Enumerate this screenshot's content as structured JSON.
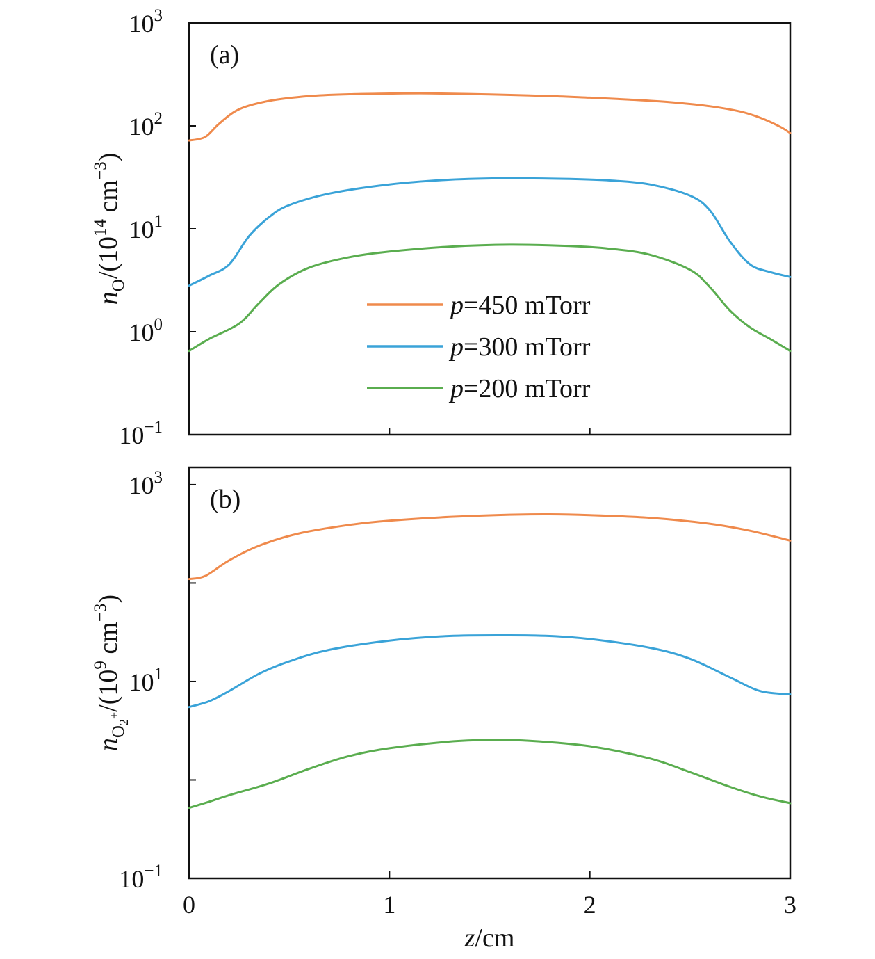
{
  "chart_data": [
    {
      "type": "line",
      "panel_label": "(a)",
      "yscale": "log",
      "ylim": [
        0.1,
        1000
      ],
      "xlim": [
        0,
        3
      ],
      "y_tick_values": [
        0.1,
        1,
        10,
        100,
        1000
      ],
      "y_tick_labels": [
        {
          "base": "10",
          "exp": "−1"
        },
        {
          "base": "10",
          "exp": "0"
        },
        {
          "base": "10",
          "exp": "1"
        },
        {
          "base": "10",
          "exp": "2"
        },
        {
          "base": "10",
          "exp": "3"
        }
      ],
      "x_tick_values": [
        0,
        1,
        2,
        3
      ],
      "x_tick_labels_shown": false,
      "ylabel": {
        "var": "n",
        "sub": "O",
        "mid": "/(10",
        "sup": "14",
        "unit": " cm",
        "unit_sup": "−3",
        "close": ")"
      },
      "legend": {
        "position": "center-right",
        "entries": [
          {
            "var": "p",
            "text": "=450 mTorr",
            "color": "#ef8a4c"
          },
          {
            "var": "p",
            "text": "=300 mTorr",
            "color": "#3aa3d8"
          },
          {
            "var": "p",
            "text": "=200 mTorr",
            "color": "#5aad4f"
          }
        ]
      },
      "series": [
        {
          "color": "#ef8a4c",
          "x": [
            0,
            0.08,
            0.15,
            0.25,
            0.4,
            0.6,
            0.8,
            1.0,
            1.2,
            1.5,
            1.8,
            2.0,
            2.2,
            2.4,
            2.6,
            2.75,
            2.85,
            2.95,
            3.0
          ],
          "y": [
            72,
            78,
            105,
            145,
            175,
            195,
            203,
            206,
            207,
            202,
            195,
            188,
            180,
            170,
            155,
            138,
            120,
            98,
            85
          ]
        },
        {
          "color": "#3aa3d8",
          "x": [
            0,
            0.1,
            0.2,
            0.3,
            0.4,
            0.5,
            0.7,
            1.0,
            1.3,
            1.6,
            1.9,
            2.1,
            2.3,
            2.5,
            2.6,
            2.7,
            2.8,
            2.9,
            3.0
          ],
          "y": [
            2.8,
            3.5,
            4.5,
            8.5,
            13,
            17,
            22,
            27,
            30,
            31,
            30.5,
            29.5,
            27,
            21,
            15,
            7.5,
            4.5,
            3.8,
            3.4
          ]
        },
        {
          "color": "#5aad4f",
          "x": [
            0,
            0.1,
            0.25,
            0.35,
            0.45,
            0.6,
            0.8,
            1.0,
            1.3,
            1.6,
            1.9,
            2.1,
            2.3,
            2.5,
            2.6,
            2.7,
            2.8,
            2.9,
            3.0
          ],
          "y": [
            0.65,
            0.85,
            1.2,
            1.9,
            2.9,
            4.2,
            5.3,
            6.0,
            6.7,
            7.0,
            6.8,
            6.4,
            5.6,
            4.0,
            2.7,
            1.6,
            1.1,
            0.85,
            0.65
          ]
        }
      ]
    },
    {
      "type": "line",
      "panel_label": "(b)",
      "yscale": "log",
      "ylim": [
        0.1,
        1500
      ],
      "xlim": [
        0,
        3
      ],
      "y_tick_values": [
        0.1,
        1,
        10,
        100,
        1000
      ],
      "y_tick_labels": [
        {
          "base": "10",
          "exp": "−1"
        },
        {
          "base": "",
          "exp": ""
        },
        {
          "base": "10",
          "exp": "1"
        },
        {
          "base": "",
          "exp": ""
        },
        {
          "base": "10",
          "exp": "3"
        }
      ],
      "x_tick_values": [
        0,
        1,
        2,
        3
      ],
      "x_tick_labels": [
        "0",
        "1",
        "2",
        "3"
      ],
      "xlabel": {
        "var": "z",
        "text": "/cm"
      },
      "ylabel": {
        "var": "n",
        "sub": "O",
        "sub2": "2",
        "sub_sup": "+",
        "mid": "/(10",
        "sup": "9",
        "unit": " cm",
        "unit_sup": "−3",
        "close": ")"
      },
      "series": [
        {
          "color": "#ef8a4c",
          "x": [
            0,
            0.08,
            0.2,
            0.35,
            0.55,
            0.8,
            1.0,
            1.3,
            1.6,
            1.8,
            2.0,
            2.3,
            2.6,
            2.8,
            3.0
          ],
          "y": [
            110,
            118,
            170,
            240,
            320,
            390,
            430,
            470,
            495,
            500,
            490,
            460,
            400,
            340,
            270
          ]
        },
        {
          "color": "#3aa3d8",
          "x": [
            0,
            0.1,
            0.2,
            0.35,
            0.5,
            0.7,
            1.0,
            1.3,
            1.6,
            1.8,
            2.0,
            2.3,
            2.5,
            2.7,
            2.85,
            3.0
          ],
          "y": [
            5.5,
            6.3,
            8,
            12,
            16,
            21,
            26,
            29,
            29.5,
            29,
            27,
            22,
            17,
            11,
            8,
            7.4
          ]
        },
        {
          "color": "#5aad4f",
          "x": [
            0,
            0.1,
            0.2,
            0.4,
            0.6,
            0.8,
            1.0,
            1.3,
            1.5,
            1.7,
            2.0,
            2.3,
            2.5,
            2.7,
            2.85,
            3.0
          ],
          "y": [
            0.52,
            0.6,
            0.7,
            0.92,
            1.3,
            1.75,
            2.1,
            2.45,
            2.55,
            2.5,
            2.2,
            1.65,
            1.2,
            0.85,
            0.68,
            0.58
          ]
        }
      ]
    }
  ]
}
